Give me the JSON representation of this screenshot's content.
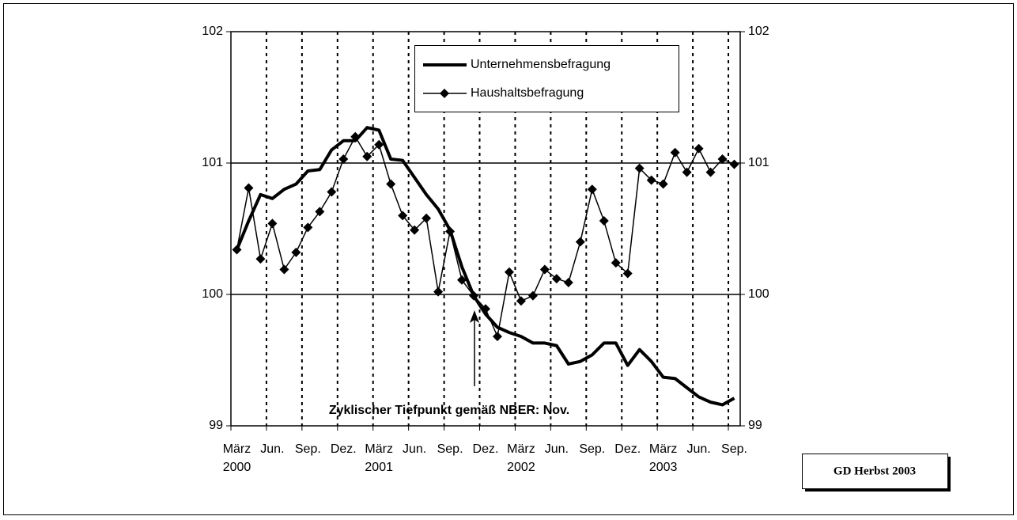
{
  "chart_data": {
    "type": "line",
    "categories": [
      "März",
      null,
      null,
      "Jun.",
      null,
      null,
      "Sep.",
      null,
      null,
      "Dez.",
      null,
      null,
      "März",
      null,
      null,
      "Jun.",
      null,
      null,
      "Sep.",
      null,
      null,
      "Dez.",
      null,
      null,
      "März",
      null,
      null,
      "Jun.",
      null,
      null,
      "Sep.",
      null,
      null,
      "Dez.",
      null,
      null,
      "März",
      null,
      null,
      "Jun.",
      null,
      null,
      "Sep."
    ],
    "years": [
      "2000",
      null,
      null,
      null,
      null,
      null,
      null,
      null,
      null,
      null,
      null,
      null,
      "2001",
      null,
      null,
      null,
      null,
      null,
      null,
      null,
      null,
      null,
      null,
      null,
      "2002",
      null,
      null,
      null,
      null,
      null,
      null,
      null,
      null,
      null,
      null,
      null,
      "2003",
      null,
      null,
      null,
      null,
      null,
      null
    ],
    "series": [
      {
        "name": "Unternehmensbefragung",
        "color": "#000000",
        "marker": false,
        "values": [
          100.34,
          100.56,
          100.76,
          100.73,
          100.8,
          100.84,
          100.94,
          100.95,
          101.1,
          101.17,
          101.17,
          101.27,
          101.25,
          101.03,
          101.02,
          100.89,
          100.76,
          100.65,
          100.49,
          100.21,
          99.99,
          99.85,
          99.75,
          99.71,
          99.68,
          99.63,
          99.63,
          99.61,
          99.47,
          99.49,
          99.54,
          99.63,
          99.63,
          99.46,
          99.58,
          99.49,
          99.37,
          99.36,
          99.29,
          99.22,
          99.18,
          99.16,
          99.21
        ]
      },
      {
        "name": "Haushaltsbefragung",
        "color": "#000000",
        "marker": true,
        "values": [
          100.34,
          100.81,
          100.27,
          100.54,
          100.19,
          100.32,
          100.51,
          100.63,
          100.78,
          101.03,
          101.2,
          101.05,
          101.14,
          100.84,
          100.6,
          100.49,
          100.58,
          100.02,
          100.48,
          100.11,
          99.99,
          99.89,
          99.68,
          100.17,
          99.95,
          99.99,
          100.19,
          100.12,
          100.09,
          100.4,
          100.8,
          100.56,
          100.24,
          100.16,
          100.96,
          100.87,
          100.84,
          101.08,
          100.93,
          101.11,
          100.93,
          101.03,
          100.99
        ]
      }
    ],
    "ylim": [
      99,
      102
    ],
    "yticks": [
      99,
      100,
      101,
      102
    ],
    "y2lim": [
      99,
      102
    ],
    "y2ticks": [
      99,
      100,
      101,
      102
    ],
    "grid": true,
    "annotation": "Zyklischer Tiefpunkt gemäß NBER: Nov.",
    "source": "GD Herbst 2003"
  }
}
